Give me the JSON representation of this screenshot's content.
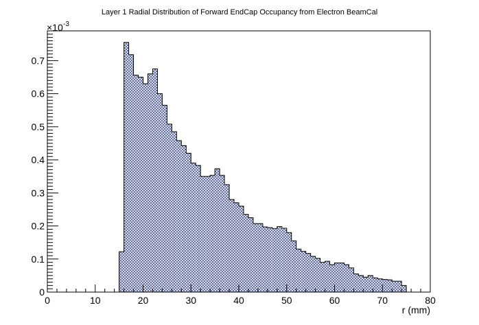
{
  "chart_data": {
    "type": "bar",
    "title": "Layer 1 Radial Distribution of Forward EndCap Occupancy from Electron BeamCal",
    "xlabel": "r (mm)",
    "ylabel": "",
    "y_multiplier": {
      "base": "×10",
      "exponent": "-3"
    },
    "xlim": [
      0,
      80
    ],
    "ylim": [
      0,
      0.79
    ],
    "bin_width": 1,
    "x_ticks": [
      0,
      10,
      20,
      30,
      40,
      50,
      60,
      70,
      80
    ],
    "x_tick_labels": [
      "0",
      "10",
      "20",
      "30",
      "40",
      "50",
      "60",
      "70",
      "80"
    ],
    "y_ticks": [
      0,
      0.1,
      0.2,
      0.3,
      0.4,
      0.5,
      0.6,
      0.7
    ],
    "y_tick_labels": [
      "0",
      "0.1",
      "0.2",
      "0.3",
      "0.4",
      "0.5",
      "0.6",
      "0.7"
    ],
    "grid": false,
    "fill_pattern": "crosshatch",
    "line_color": "#000000",
    "fill_color": "#4c5a8c",
    "x": [
      15,
      16,
      17,
      18,
      19,
      20,
      21,
      22,
      23,
      24,
      25,
      26,
      27,
      28,
      29,
      30,
      31,
      32,
      33,
      34,
      35,
      36,
      37,
      38,
      39,
      40,
      41,
      42,
      43,
      44,
      45,
      46,
      47,
      48,
      49,
      50,
      51,
      52,
      53,
      54,
      55,
      56,
      57,
      58,
      59,
      60,
      61,
      62,
      63,
      64,
      65,
      66,
      67,
      68,
      69,
      70,
      71,
      72,
      73,
      74
    ],
    "values": [
      0.122,
      0.755,
      0.718,
      0.656,
      0.65,
      0.63,
      0.66,
      0.675,
      0.6,
      0.565,
      0.508,
      0.485,
      0.458,
      0.443,
      0.42,
      0.39,
      0.383,
      0.35,
      0.35,
      0.353,
      0.373,
      0.353,
      0.325,
      0.28,
      0.27,
      0.26,
      0.235,
      0.225,
      0.207,
      0.207,
      0.197,
      0.195,
      0.192,
      0.198,
      0.193,
      0.18,
      0.155,
      0.13,
      0.123,
      0.117,
      0.108,
      0.102,
      0.09,
      0.093,
      0.083,
      0.088,
      0.088,
      0.083,
      0.073,
      0.055,
      0.05,
      0.045,
      0.05,
      0.043,
      0.04,
      0.038,
      0.037,
      0.033,
      0.033,
      0.02
    ]
  }
}
